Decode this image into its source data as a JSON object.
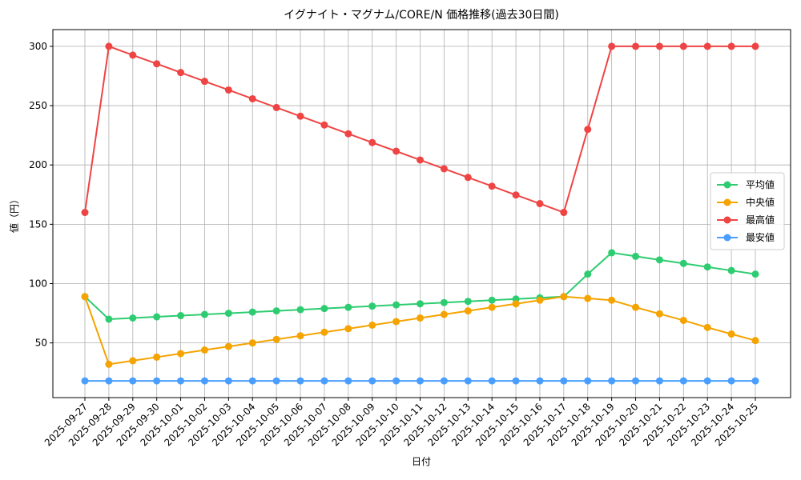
{
  "chart_data": {
    "type": "line",
    "title": "イグナイト・マグナム/CORE/N 価格推移(過去30日間)",
    "xlabel": "日付",
    "ylabel": "値（円）",
    "categories": [
      "2025-09-27",
      "2025-09-28",
      "2025-09-29",
      "2025-09-30",
      "2025-10-01",
      "2025-10-02",
      "2025-10-03",
      "2025-10-04",
      "2025-10-05",
      "2025-10-06",
      "2025-10-07",
      "2025-10-08",
      "2025-10-09",
      "2025-10-10",
      "2025-10-11",
      "2025-10-12",
      "2025-10-13",
      "2025-10-14",
      "2025-10-15",
      "2025-10-16",
      "2025-10-17",
      "2025-10-18",
      "2025-10-19",
      "2025-10-20",
      "2025-10-21",
      "2025-10-22",
      "2025-10-23",
      "2025-10-24",
      "2025-10-25"
    ],
    "series": [
      {
        "name": "平均値",
        "color": "#2ecc71",
        "values": [
          89,
          70,
          71,
          72,
          73,
          74,
          75,
          76,
          77,
          78,
          79,
          80,
          81,
          82,
          83,
          84,
          85,
          86,
          87,
          88,
          89,
          108,
          126,
          123,
          120,
          117,
          114,
          111,
          108
        ]
      },
      {
        "name": "中央値",
        "color": "#f5a300",
        "values": [
          89,
          32,
          35,
          38,
          41,
          44,
          47,
          50,
          53,
          56,
          59,
          62,
          65,
          68,
          71,
          74,
          77,
          80,
          83,
          86,
          89,
          87.5,
          86,
          80,
          74.5,
          69,
          63,
          57.5,
          52
        ]
      },
      {
        "name": "最高値",
        "color": "#ef4444",
        "values": [
          160,
          300,
          292.6,
          285.3,
          277.9,
          270.5,
          263.2,
          255.8,
          248.4,
          241.1,
          233.7,
          226.3,
          218.9,
          211.6,
          204.2,
          196.8,
          189.5,
          182.1,
          174.7,
          167.4,
          160,
          230,
          300,
          300,
          300,
          300,
          300,
          300,
          300
        ]
      },
      {
        "name": "最安値",
        "color": "#4a9eff",
        "values": [
          18,
          18,
          18,
          18,
          18,
          18,
          18,
          18,
          18,
          18,
          18,
          18,
          18,
          18,
          18,
          18,
          18,
          18,
          18,
          18,
          18,
          18,
          18,
          18,
          18,
          18,
          18,
          18,
          18
        ]
      }
    ],
    "ylim": [
      3.9,
      314.1
    ],
    "yticks": [
      50,
      100,
      150,
      200,
      250,
      300
    ],
    "grid": true,
    "legend": "right"
  }
}
